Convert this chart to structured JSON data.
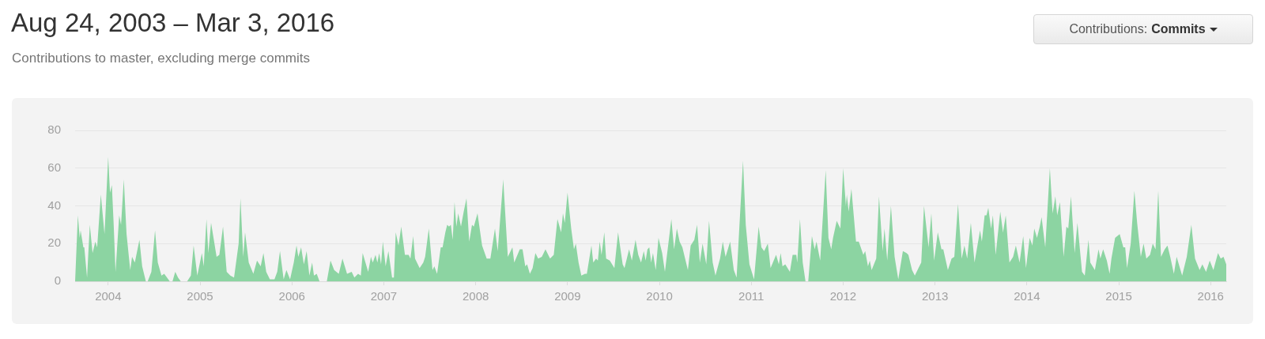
{
  "chart_data": {
    "type": "area",
    "title": "Aug 24, 2003 – Mar 3, 2016",
    "subtitle": "Contributions to master, excluding merge commits",
    "annotations": [
      "Contributions:",
      "Commits"
    ],
    "color": "#8cd4a2",
    "grid": "y",
    "marker": "none",
    "xlim": [
      2003.64,
      2016.17
    ],
    "xticks": [
      2004,
      2005,
      2006,
      2007,
      2008,
      2009,
      2010,
      2011,
      2012,
      2013,
      2014,
      2015,
      2016
    ],
    "ylim": [
      0,
      80
    ],
    "yticks": [
      0,
      20,
      40,
      60,
      80
    ],
    "x": [
      2003.64,
      2003.67,
      2003.69,
      2003.7,
      2003.73,
      2003.74,
      2003.77,
      2003.8,
      2003.83,
      2003.86,
      2003.88,
      2003.92,
      2003.96,
      2004.0,
      2004.02,
      2004.04,
      2004.06,
      2004.08,
      2004.12,
      2004.14,
      2004.17,
      2004.2,
      2004.24,
      2004.26,
      2004.29,
      2004.34,
      2004.37,
      2004.41,
      2004.43,
      2004.47,
      2004.51,
      2004.54,
      2004.58,
      2004.61,
      2004.67,
      2004.7,
      2004.73,
      2004.76,
      2004.79,
      2004.86,
      2004.9,
      2004.93,
      2004.97,
      2005.02,
      2005.04,
      2005.07,
      2005.09,
      2005.12,
      2005.18,
      2005.21,
      2005.25,
      2005.29,
      2005.33,
      2005.37,
      2005.42,
      2005.44,
      2005.47,
      2005.49,
      2005.53,
      2005.58,
      2005.62,
      2005.66,
      2005.69,
      2005.72,
      2005.76,
      2005.81,
      2005.84,
      2005.87,
      2005.91,
      2005.94,
      2005.98,
      2006.02,
      2006.05,
      2006.07,
      2006.1,
      2006.13,
      2006.16,
      2006.19,
      2006.22,
      2006.24,
      2006.27,
      2006.3,
      2006.38,
      2006.42,
      2006.46,
      2006.51,
      2006.55,
      2006.6,
      2006.65,
      2006.68,
      2006.72,
      2006.75,
      2006.77,
      2006.83,
      2006.86,
      2006.88,
      2006.91,
      2006.93,
      2006.95,
      2006.97,
      2006.99,
      2007.02,
      2007.05,
      2007.09,
      2007.11,
      2007.13,
      2007.16,
      2007.19,
      2007.23,
      2007.27,
      2007.29,
      2007.32,
      2007.34,
      2007.39,
      2007.43,
      2007.45,
      2007.49,
      2007.53,
      2007.55,
      2007.58,
      2007.62,
      2007.64,
      2007.67,
      2007.69,
      2007.71,
      2007.73,
      2007.75,
      2007.77,
      2007.79,
      2007.81,
      2007.84,
      2007.87,
      2007.9,
      2007.93,
      2007.96,
      2007.98,
      2008.02,
      2008.07,
      2008.12,
      2008.16,
      2008.21,
      2008.24,
      2008.3,
      2008.35,
      2008.37,
      2008.4,
      2008.42,
      2008.48,
      2008.51,
      2008.54,
      2008.56,
      2008.59,
      2008.62,
      2008.65,
      2008.68,
      2008.72,
      2008.76,
      2008.81,
      2008.85,
      2008.89,
      2008.93,
      2008.95,
      2008.97,
      2009.0,
      2009.04,
      2009.07,
      2009.09,
      2009.12,
      2009.15,
      2009.19,
      2009.21,
      2009.26,
      2009.28,
      2009.31,
      2009.33,
      2009.35,
      2009.37,
      2009.4,
      2009.42,
      2009.46,
      2009.51,
      2009.55,
      2009.6,
      2009.62,
      2009.67,
      2009.7,
      2009.74,
      2009.77,
      2009.8,
      2009.83,
      2009.85,
      2009.87,
      2009.89,
      2009.91,
      2009.93,
      2009.96,
      2009.99,
      2010.03,
      2010.06,
      2010.13,
      2010.16,
      2010.19,
      2010.22,
      2010.25,
      2010.31,
      2010.34,
      2010.38,
      2010.41,
      2010.44,
      2010.47,
      2010.51,
      2010.54,
      2010.58,
      2010.61,
      2010.66,
      2010.69,
      2010.72,
      2010.77,
      2010.81,
      2010.84,
      2010.91,
      2010.94,
      2010.98,
      2011.03,
      2011.08,
      2011.11,
      2011.14,
      2011.18,
      2011.21,
      2011.27,
      2011.3,
      2011.32,
      2011.34,
      2011.37,
      2011.42,
      2011.45,
      2011.49,
      2011.5,
      2011.53,
      2011.56,
      2011.59,
      2011.62,
      2011.66,
      2011.69,
      2011.71,
      2011.75,
      2011.81,
      2011.84,
      2011.87,
      2011.89,
      2011.93,
      2011.97,
      2012.0,
      2012.03,
      2012.04,
      2012.06,
      2012.09,
      2012.14,
      2012.17,
      2012.22,
      2012.24,
      2012.27,
      2012.29,
      2012.31,
      2012.36,
      2012.39,
      2012.43,
      2012.45,
      2012.48,
      2012.52,
      2012.56,
      2012.6,
      2012.65,
      2012.69,
      2012.71,
      2012.75,
      2012.78,
      2012.82,
      2012.85,
      2012.88,
      2012.93,
      2012.96,
      2012.99,
      2013.03,
      2013.07,
      2013.09,
      2013.14,
      2013.18,
      2013.21,
      2013.25,
      2013.29,
      2013.32,
      2013.35,
      2013.39,
      2013.43,
      2013.49,
      2013.51,
      2013.54,
      2013.56,
      2013.58,
      2013.61,
      2013.63,
      2013.66,
      2013.71,
      2013.74,
      2013.77,
      2013.81,
      2013.85,
      2013.88,
      2013.92,
      2013.96,
      2013.99,
      2014.03,
      2014.06,
      2014.08,
      2014.11,
      2014.14,
      2014.16,
      2014.2,
      2014.25,
      2014.28,
      2014.31,
      2014.33,
      2014.36,
      2014.4,
      2014.43,
      2014.45,
      2014.48,
      2014.52,
      2014.55,
      2014.6,
      2014.63,
      2014.67,
      2014.69,
      2014.74,
      2014.78,
      2014.8,
      2014.83,
      2014.87,
      2014.9,
      2014.92,
      2014.96,
      2015.01,
      2015.05,
      2015.07,
      2015.09,
      2015.13,
      2015.17,
      2015.2,
      2015.24,
      2015.27,
      2015.3,
      2015.34,
      2015.37,
      2015.4,
      2015.43,
      2015.46,
      2015.5,
      2015.53,
      2015.56,
      2015.6,
      2015.63,
      2015.66,
      2015.69,
      2015.74,
      2015.79,
      2015.83,
      2015.88,
      2015.91,
      2015.95,
      2015.99,
      2016.03,
      2016.08,
      2016.11,
      2016.14,
      2016.17
    ],
    "values": [
      0,
      35,
      23,
      27,
      18,
      18,
      2,
      30,
      15,
      21,
      18,
      46,
      25,
      66,
      47,
      51,
      30,
      5,
      35,
      30,
      54,
      25,
      6,
      13,
      10,
      22,
      8,
      0,
      0,
      5,
      27,
      10,
      3,
      4,
      0,
      0,
      5,
      2,
      0,
      0,
      3,
      19,
      3,
      15,
      8,
      33,
      15,
      31,
      13,
      14,
      29,
      5,
      3,
      2,
      20,
      44,
      13,
      26,
      10,
      4,
      11,
      8,
      15,
      5,
      1,
      1,
      5,
      16,
      1,
      6,
      1,
      10,
      19,
      13,
      18,
      9,
      16,
      3,
      10,
      3,
      4,
      0,
      0,
      11,
      6,
      4,
      12,
      4,
      5,
      2,
      4,
      3,
      15,
      5,
      13,
      10,
      14,
      10,
      15,
      9,
      21,
      8,
      16,
      2,
      2,
      26,
      19,
      29,
      14,
      14,
      12,
      24,
      12,
      7,
      10,
      13,
      28,
      6,
      8,
      4,
      18,
      18,
      26,
      30,
      29,
      30,
      22,
      42,
      29,
      36,
      29,
      37,
      44,
      21,
      30,
      29,
      36,
      19,
      12,
      12,
      28,
      16,
      54,
      13,
      15,
      18,
      10,
      17,
      17,
      8,
      9,
      4,
      7,
      15,
      12,
      13,
      17,
      12,
      14,
      33,
      26,
      36,
      31,
      47,
      28,
      17,
      20,
      10,
      3,
      4,
      4,
      19,
      10,
      12,
      11,
      21,
      14,
      26,
      12,
      11,
      7,
      26,
      9,
      7,
      17,
      11,
      22,
      14,
      10,
      16,
      11,
      17,
      18,
      10,
      15,
      6,
      23,
      15,
      5,
      33,
      17,
      28,
      21,
      18,
      6,
      19,
      22,
      30,
      10,
      20,
      9,
      32,
      10,
      3,
      12,
      21,
      13,
      21,
      6,
      2,
      64,
      30,
      9,
      1,
      29,
      18,
      16,
      20,
      7,
      14,
      9,
      15,
      8,
      9,
      5,
      14,
      14,
      10,
      33,
      10,
      0,
      0,
      24,
      17,
      21,
      11,
      59,
      23,
      17,
      23,
      32,
      28,
      60,
      40,
      46,
      37,
      49,
      21,
      21,
      14,
      16,
      8,
      11,
      6,
      12,
      45,
      16,
      28,
      11,
      40,
      13,
      1,
      16,
      15,
      14,
      6,
      3,
      7,
      10,
      40,
      18,
      36,
      11,
      26,
      17,
      17,
      6,
      12,
      13,
      41,
      12,
      19,
      12,
      31,
      10,
      27,
      21,
      35,
      35,
      39,
      28,
      35,
      14,
      37,
      26,
      35,
      10,
      13,
      19,
      10,
      24,
      7,
      23,
      19,
      28,
      23,
      29,
      34,
      18,
      60,
      36,
      45,
      35,
      42,
      13,
      29,
      28,
      45,
      15,
      31,
      5,
      3,
      22,
      10,
      6,
      17,
      12,
      17,
      11,
      4,
      12,
      23,
      25,
      18,
      18,
      7,
      20,
      48,
      31,
      13,
      20,
      12,
      14,
      20,
      17,
      48,
      13,
      17,
      19,
      13,
      4,
      13,
      8,
      3,
      13,
      30,
      12,
      6,
      9,
      5,
      11,
      6,
      15,
      12,
      13,
      9
    ]
  }
}
